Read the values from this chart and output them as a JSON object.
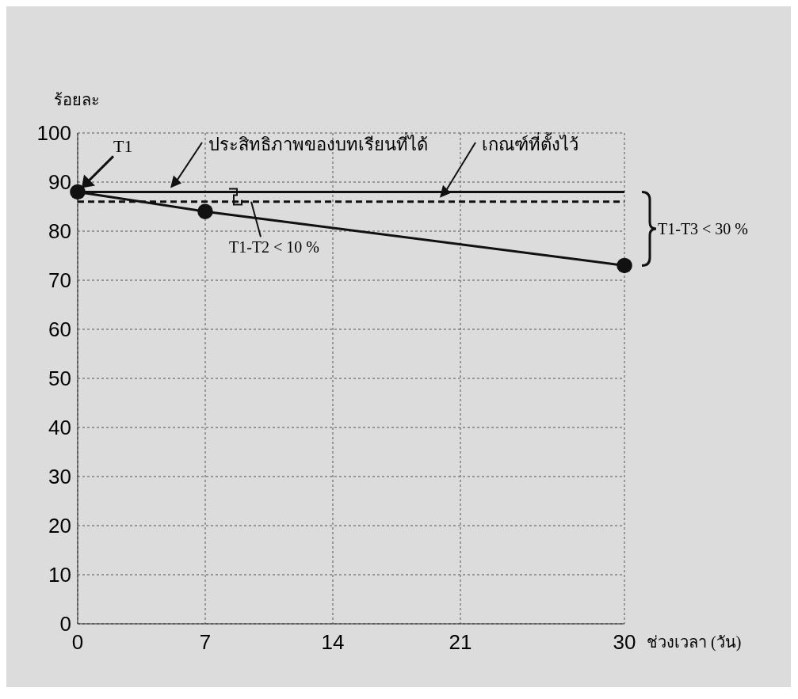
{
  "chart_data": {
    "type": "line",
    "ylabel": "ร้อยละ",
    "xlabel": "ช่วงเวลา (วัน)",
    "xlim": [
      0,
      30
    ],
    "xticks": [
      0,
      7,
      14,
      21,
      30
    ],
    "ylim": [
      0,
      100
    ],
    "yticks": [
      0,
      10,
      20,
      30,
      40,
      50,
      60,
      70,
      80,
      90,
      100
    ],
    "grid": true,
    "series": [
      {
        "x": [
          0,
          7,
          30
        ],
        "values": [
          88,
          84,
          73
        ],
        "color": "#111111",
        "marker": "circle",
        "line_style": "solid"
      }
    ],
    "ref_lines": [
      {
        "axis": "y",
        "value": 88,
        "label": "ประสิทธิภาพของบทเรียนที่ได้",
        "color": "#111111",
        "line_style": "solid"
      },
      {
        "axis": "y",
        "value": 86,
        "label": "เกณฑ์ที่ตั้งไว้",
        "color": "#111111",
        "line_style": "dashed"
      }
    ],
    "annotations": [
      {
        "text": "T1",
        "x": 0,
        "y": 88
      },
      {
        "text": "T1-T2 < 10 %",
        "x": 7,
        "y": 84
      },
      {
        "text": "T1-T3 < 30 %",
        "x": 30,
        "y": 73
      }
    ]
  }
}
